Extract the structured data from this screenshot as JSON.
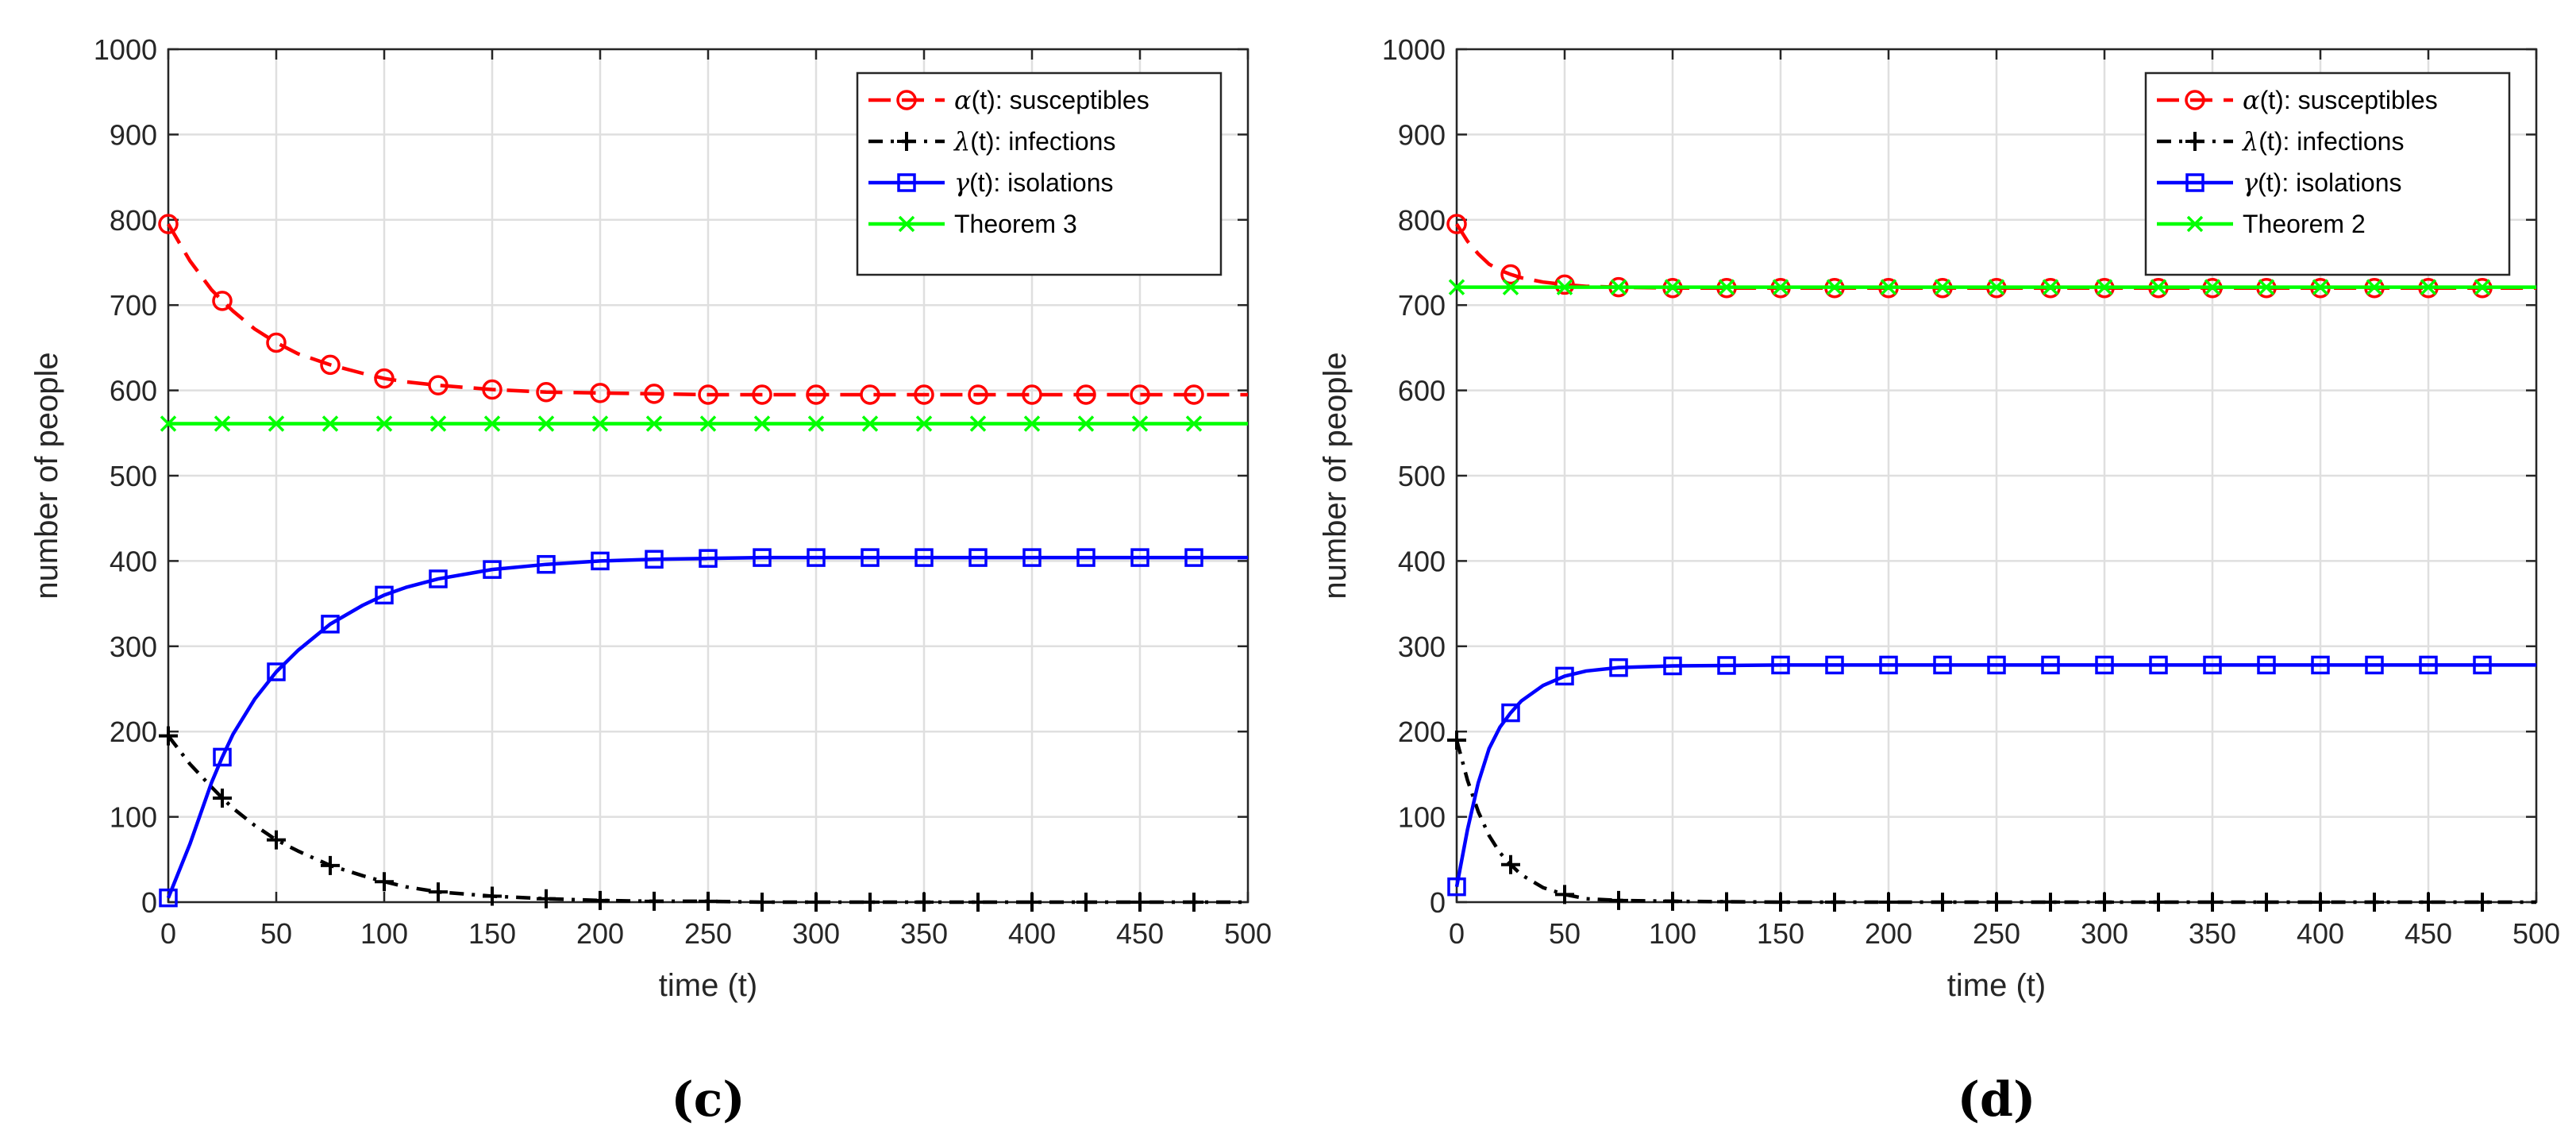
{
  "colors": {
    "susceptibles": "#ff0000",
    "infections": "#000000",
    "isolations": "#0000ff",
    "theorem": "#00ff00"
  },
  "chart_data": [
    {
      "type": "line",
      "panel_label": "(c)",
      "xlabel": "time (t)",
      "ylabel": "number of people",
      "xlim": [
        0,
        500
      ],
      "ylim": [
        0,
        1000
      ],
      "xticks": [
        "0",
        "50",
        "100",
        "150",
        "200",
        "250",
        "300",
        "350",
        "400",
        "450",
        "500"
      ],
      "yticks": [
        "0",
        "100",
        "200",
        "300",
        "400",
        "500",
        "600",
        "700",
        "800",
        "900",
        "1000"
      ],
      "grid": true,
      "legend_position": "top-right",
      "marker_x": [
        0,
        25,
        50,
        75,
        100,
        125,
        150,
        175,
        200,
        225,
        250,
        275,
        300,
        325,
        350,
        375,
        400,
        425,
        450,
        475
      ],
      "series": [
        {
          "name": "α(t): susceptibles",
          "greek": "α",
          "rest": "(t): susceptibles",
          "color": "#ff0000",
          "dash": "28,14",
          "marker": "circle",
          "x": [
            0,
            10,
            20,
            25,
            30,
            40,
            50,
            60,
            75,
            90,
            100,
            110,
            125,
            150,
            175,
            200,
            225,
            250,
            275,
            300,
            350,
            400,
            450,
            500
          ],
          "y": [
            795,
            752,
            718,
            705,
            693,
            672,
            656,
            643,
            630,
            620,
            614,
            610,
            606,
            601,
            598,
            597,
            596,
            595,
            595,
            595,
            595,
            595,
            595,
            595
          ]
        },
        {
          "name": "λ(t): infections",
          "greek": "λ",
          "rest": "(t): infections",
          "color": "#000000",
          "dash": "18,10,4,10",
          "marker": "plus",
          "x": [
            0,
            10,
            20,
            25,
            30,
            40,
            50,
            60,
            75,
            90,
            100,
            110,
            125,
            150,
            175,
            200,
            225,
            250,
            275,
            300,
            350,
            400,
            450,
            500
          ],
          "y": [
            195,
            162,
            135,
            122,
            110,
            90,
            73,
            60,
            43,
            31,
            24,
            18,
            12,
            7,
            4,
            2,
            1,
            1,
            0,
            0,
            0,
            0,
            0,
            0
          ]
        },
        {
          "name": "γ(t): isolations",
          "greek": "γ",
          "rest": "(t): isolations",
          "color": "#0000ff",
          "dash": "",
          "marker": "square",
          "x": [
            0,
            10,
            20,
            25,
            30,
            40,
            50,
            60,
            75,
            90,
            100,
            110,
            125,
            150,
            175,
            200,
            225,
            250,
            275,
            300,
            350,
            400,
            450,
            500
          ],
          "y": [
            5,
            68,
            140,
            170,
            197,
            238,
            270,
            295,
            326,
            348,
            360,
            369,
            379,
            390,
            396,
            400,
            402,
            403,
            404,
            404,
            404,
            404,
            404,
            404
          ]
        },
        {
          "name": "Theorem 3",
          "greek": "",
          "rest": "Theorem 3",
          "color": "#00ff00",
          "dash": "",
          "marker": "x",
          "x": [
            0,
            500
          ],
          "y": [
            561,
            561
          ]
        }
      ]
    },
    {
      "type": "line",
      "panel_label": "(d)",
      "xlabel": "time (t)",
      "ylabel": "number of people",
      "xlim": [
        0,
        500
      ],
      "ylim": [
        0,
        1000
      ],
      "xticks": [
        "0",
        "50",
        "100",
        "150",
        "200",
        "250",
        "300",
        "350",
        "400",
        "450",
        "500"
      ],
      "yticks": [
        "0",
        "100",
        "200",
        "300",
        "400",
        "500",
        "600",
        "700",
        "800",
        "900",
        "1000"
      ],
      "grid": true,
      "legend_position": "top-right",
      "marker_x": [
        0,
        25,
        50,
        75,
        100,
        125,
        150,
        175,
        200,
        225,
        250,
        275,
        300,
        325,
        350,
        375,
        400,
        425,
        450,
        475
      ],
      "series": [
        {
          "name": "α(t): susceptibles",
          "greek": "α",
          "rest": "(t): susceptibles",
          "color": "#ff0000",
          "dash": "28,14",
          "marker": "circle",
          "x": [
            0,
            5,
            10,
            15,
            20,
            25,
            30,
            40,
            50,
            60,
            75,
            100,
            150,
            200,
            300,
            400,
            500
          ],
          "y": [
            795,
            775,
            760,
            748,
            741,
            736,
            732,
            727,
            724,
            722,
            721,
            720,
            720,
            720,
            720,
            720,
            720
          ]
        },
        {
          "name": "λ(t): infections",
          "greek": "λ",
          "rest": "(t): infections",
          "color": "#000000",
          "dash": "18,10,4,10",
          "marker": "plus",
          "x": [
            0,
            5,
            10,
            15,
            20,
            25,
            30,
            40,
            50,
            60,
            75,
            100,
            150,
            200,
            300,
            400,
            500
          ],
          "y": [
            190,
            143,
            106,
            78,
            58,
            44,
            32,
            17,
            9,
            4,
            2,
            1,
            0,
            0,
            0,
            0,
            0
          ]
        },
        {
          "name": "γ(t): isolations",
          "greek": "γ",
          "rest": "(t): isolations",
          "color": "#0000ff",
          "dash": "",
          "marker": "square",
          "x": [
            0,
            5,
            10,
            15,
            20,
            25,
            30,
            40,
            50,
            60,
            75,
            100,
            150,
            200,
            300,
            400,
            500
          ],
          "y": [
            18,
            85,
            140,
            180,
            205,
            222,
            236,
            254,
            265,
            271,
            275,
            277,
            278,
            278,
            278,
            278,
            278
          ]
        },
        {
          "name": "Theorem 2",
          "greek": "",
          "rest": "Theorem 2",
          "color": "#00ff00",
          "dash": "",
          "marker": "x",
          "x": [
            0,
            500
          ],
          "y": [
            721,
            721
          ]
        }
      ]
    }
  ]
}
